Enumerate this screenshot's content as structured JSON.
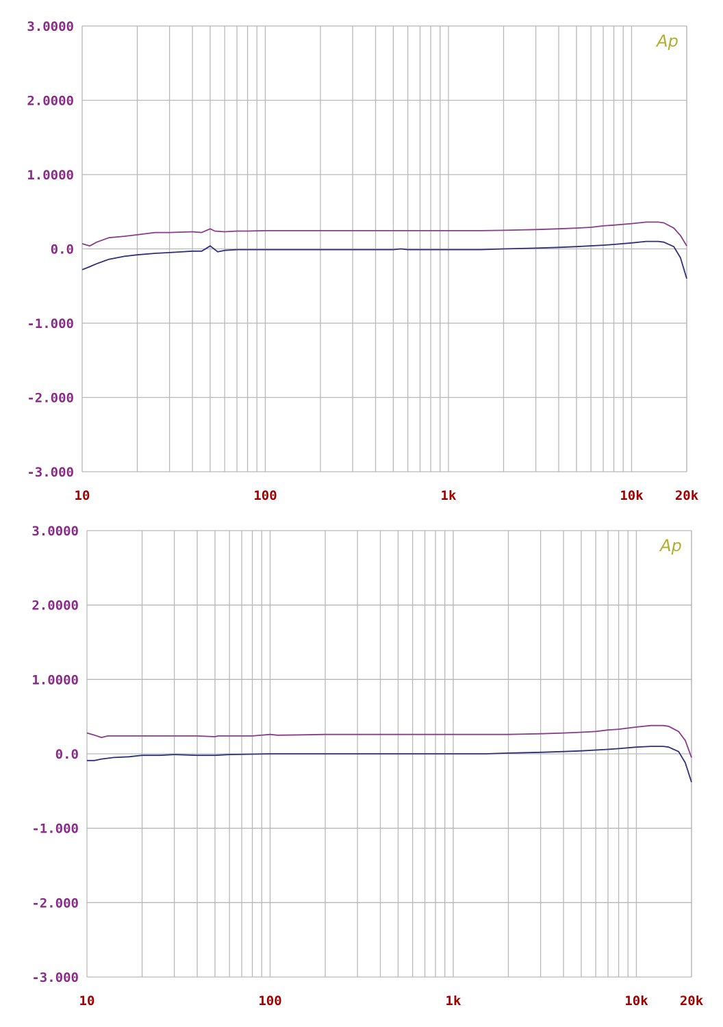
{
  "colors": {
    "grid": "#b8b8b8",
    "ytick": "#8a2a8a",
    "xtick": "#a00000",
    "logo": "#b0b030",
    "series_upper": "#8a3a8a",
    "series_lower": "#2e2e7a"
  },
  "logo_text": "Ap",
  "chart_data": [
    {
      "type": "line",
      "x_scale": "log",
      "xlim": [
        10,
        20000
      ],
      "ylim": [
        -3,
        3
      ],
      "grid": true,
      "y_ticks": [
        {
          "value": 3,
          "label": "3.0000"
        },
        {
          "value": 2,
          "label": "2.0000"
        },
        {
          "value": 1,
          "label": "1.0000"
        },
        {
          "value": 0,
          "label": "0.0"
        },
        {
          "value": -1,
          "label": "-1.000"
        },
        {
          "value": -2,
          "label": "-2.000"
        },
        {
          "value": -3,
          "label": "-3.000"
        }
      ],
      "x_ticks": [
        {
          "value": 10,
          "label": "10"
        },
        {
          "value": 100,
          "label": "100"
        },
        {
          "value": 1000,
          "label": "1k"
        },
        {
          "value": 10000,
          "label": "10k"
        },
        {
          "value": 20000,
          "label": "20k"
        }
      ],
      "series": [
        {
          "color_key": "series_upper",
          "points": [
            [
              10,
              0.07
            ],
            [
              11,
              0.04
            ],
            [
              12,
              0.09
            ],
            [
              14,
              0.15
            ],
            [
              17,
              0.17
            ],
            [
              20,
              0.19
            ],
            [
              25,
              0.22
            ],
            [
              30,
              0.22
            ],
            [
              40,
              0.23
            ],
            [
              45,
              0.22
            ],
            [
              50,
              0.27
            ],
            [
              53,
              0.24
            ],
            [
              60,
              0.23
            ],
            [
              70,
              0.24
            ],
            [
              80,
              0.24
            ],
            [
              100,
              0.245
            ],
            [
              150,
              0.245
            ],
            [
              200,
              0.245
            ],
            [
              300,
              0.245
            ],
            [
              500,
              0.245
            ],
            [
              700,
              0.245
            ],
            [
              1000,
              0.245
            ],
            [
              1500,
              0.245
            ],
            [
              2000,
              0.25
            ],
            [
              3000,
              0.26
            ],
            [
              4000,
              0.27
            ],
            [
              5000,
              0.28
            ],
            [
              6000,
              0.29
            ],
            [
              7000,
              0.31
            ],
            [
              8000,
              0.32
            ],
            [
              10000,
              0.34
            ],
            [
              12000,
              0.36
            ],
            [
              14000,
              0.36
            ],
            [
              15000,
              0.35
            ],
            [
              17000,
              0.28
            ],
            [
              18500,
              0.18
            ],
            [
              20000,
              0.04
            ]
          ]
        },
        {
          "color_key": "series_lower",
          "points": [
            [
              10,
              -0.28
            ],
            [
              11,
              -0.24
            ],
            [
              12,
              -0.2
            ],
            [
              14,
              -0.14
            ],
            [
              17,
              -0.1
            ],
            [
              20,
              -0.08
            ],
            [
              25,
              -0.06
            ],
            [
              30,
              -0.05
            ],
            [
              40,
              -0.03
            ],
            [
              45,
              -0.03
            ],
            [
              50,
              0.04
            ],
            [
              55,
              -0.04
            ],
            [
              60,
              -0.02
            ],
            [
              70,
              -0.01
            ],
            [
              100,
              -0.01
            ],
            [
              200,
              -0.01
            ],
            [
              500,
              -0.01
            ],
            [
              550,
              0.0
            ],
            [
              600,
              -0.01
            ],
            [
              1000,
              -0.01
            ],
            [
              1500,
              -0.01
            ],
            [
              2000,
              0.0
            ],
            [
              3000,
              0.01
            ],
            [
              4000,
              0.02
            ],
            [
              5000,
              0.03
            ],
            [
              7000,
              0.05
            ],
            [
              8000,
              0.06
            ],
            [
              10000,
              0.08
            ],
            [
              12000,
              0.1
            ],
            [
              14000,
              0.1
            ],
            [
              15000,
              0.09
            ],
            [
              17000,
              0.03
            ],
            [
              18500,
              -0.12
            ],
            [
              20000,
              -0.4
            ]
          ]
        }
      ]
    },
    {
      "type": "line",
      "x_scale": "log",
      "xlim": [
        10,
        20000
      ],
      "ylim": [
        -3,
        3
      ],
      "grid": true,
      "y_ticks": [
        {
          "value": 3,
          "label": "3.0000"
        },
        {
          "value": 2,
          "label": "2.0000"
        },
        {
          "value": 1,
          "label": "1.0000"
        },
        {
          "value": 0,
          "label": "0.0"
        },
        {
          "value": -1,
          "label": "-1.000"
        },
        {
          "value": -2,
          "label": "-2.000"
        },
        {
          "value": -3,
          "label": "-3.000"
        }
      ],
      "x_ticks": [
        {
          "value": 10,
          "label": "10"
        },
        {
          "value": 100,
          "label": "100"
        },
        {
          "value": 1000,
          "label": "1k"
        },
        {
          "value": 10000,
          "label": "10k"
        },
        {
          "value": 20000,
          "label": "20k"
        }
      ],
      "series": [
        {
          "color_key": "series_upper",
          "points": [
            [
              10,
              0.28
            ],
            [
              11,
              0.25
            ],
            [
              12,
              0.22
            ],
            [
              13,
              0.24
            ],
            [
              15,
              0.24
            ],
            [
              20,
              0.24
            ],
            [
              30,
              0.24
            ],
            [
              40,
              0.24
            ],
            [
              50,
              0.23
            ],
            [
              52,
              0.24
            ],
            [
              70,
              0.24
            ],
            [
              80,
              0.24
            ],
            [
              100,
              0.26
            ],
            [
              110,
              0.25
            ],
            [
              150,
              0.255
            ],
            [
              200,
              0.26
            ],
            [
              300,
              0.26
            ],
            [
              500,
              0.26
            ],
            [
              700,
              0.26
            ],
            [
              1000,
              0.26
            ],
            [
              1500,
              0.26
            ],
            [
              2000,
              0.26
            ],
            [
              3000,
              0.27
            ],
            [
              4000,
              0.28
            ],
            [
              5000,
              0.29
            ],
            [
              6000,
              0.3
            ],
            [
              7000,
              0.32
            ],
            [
              8000,
              0.33
            ],
            [
              10000,
              0.36
            ],
            [
              12000,
              0.38
            ],
            [
              14000,
              0.38
            ],
            [
              15000,
              0.37
            ],
            [
              17000,
              0.3
            ],
            [
              18500,
              0.18
            ],
            [
              20000,
              -0.05
            ]
          ]
        },
        {
          "color_key": "series_lower",
          "points": [
            [
              10,
              -0.09
            ],
            [
              11,
              -0.09
            ],
            [
              12,
              -0.07
            ],
            [
              14,
              -0.05
            ],
            [
              17,
              -0.04
            ],
            [
              20,
              -0.02
            ],
            [
              25,
              -0.02
            ],
            [
              30,
              -0.01
            ],
            [
              40,
              -0.02
            ],
            [
              50,
              -0.02
            ],
            [
              60,
              -0.01
            ],
            [
              100,
              0.0
            ],
            [
              200,
              0.0
            ],
            [
              500,
              0.0
            ],
            [
              700,
              0.0
            ],
            [
              1000,
              0.0
            ],
            [
              1500,
              0.0
            ],
            [
              2000,
              0.01
            ],
            [
              3000,
              0.02
            ],
            [
              4000,
              0.03
            ],
            [
              5000,
              0.04
            ],
            [
              7000,
              0.06
            ],
            [
              8000,
              0.07
            ],
            [
              10000,
              0.09
            ],
            [
              12000,
              0.1
            ],
            [
              14000,
              0.1
            ],
            [
              15000,
              0.09
            ],
            [
              17000,
              0.03
            ],
            [
              18500,
              -0.12
            ],
            [
              20000,
              -0.38
            ]
          ]
        }
      ]
    }
  ]
}
